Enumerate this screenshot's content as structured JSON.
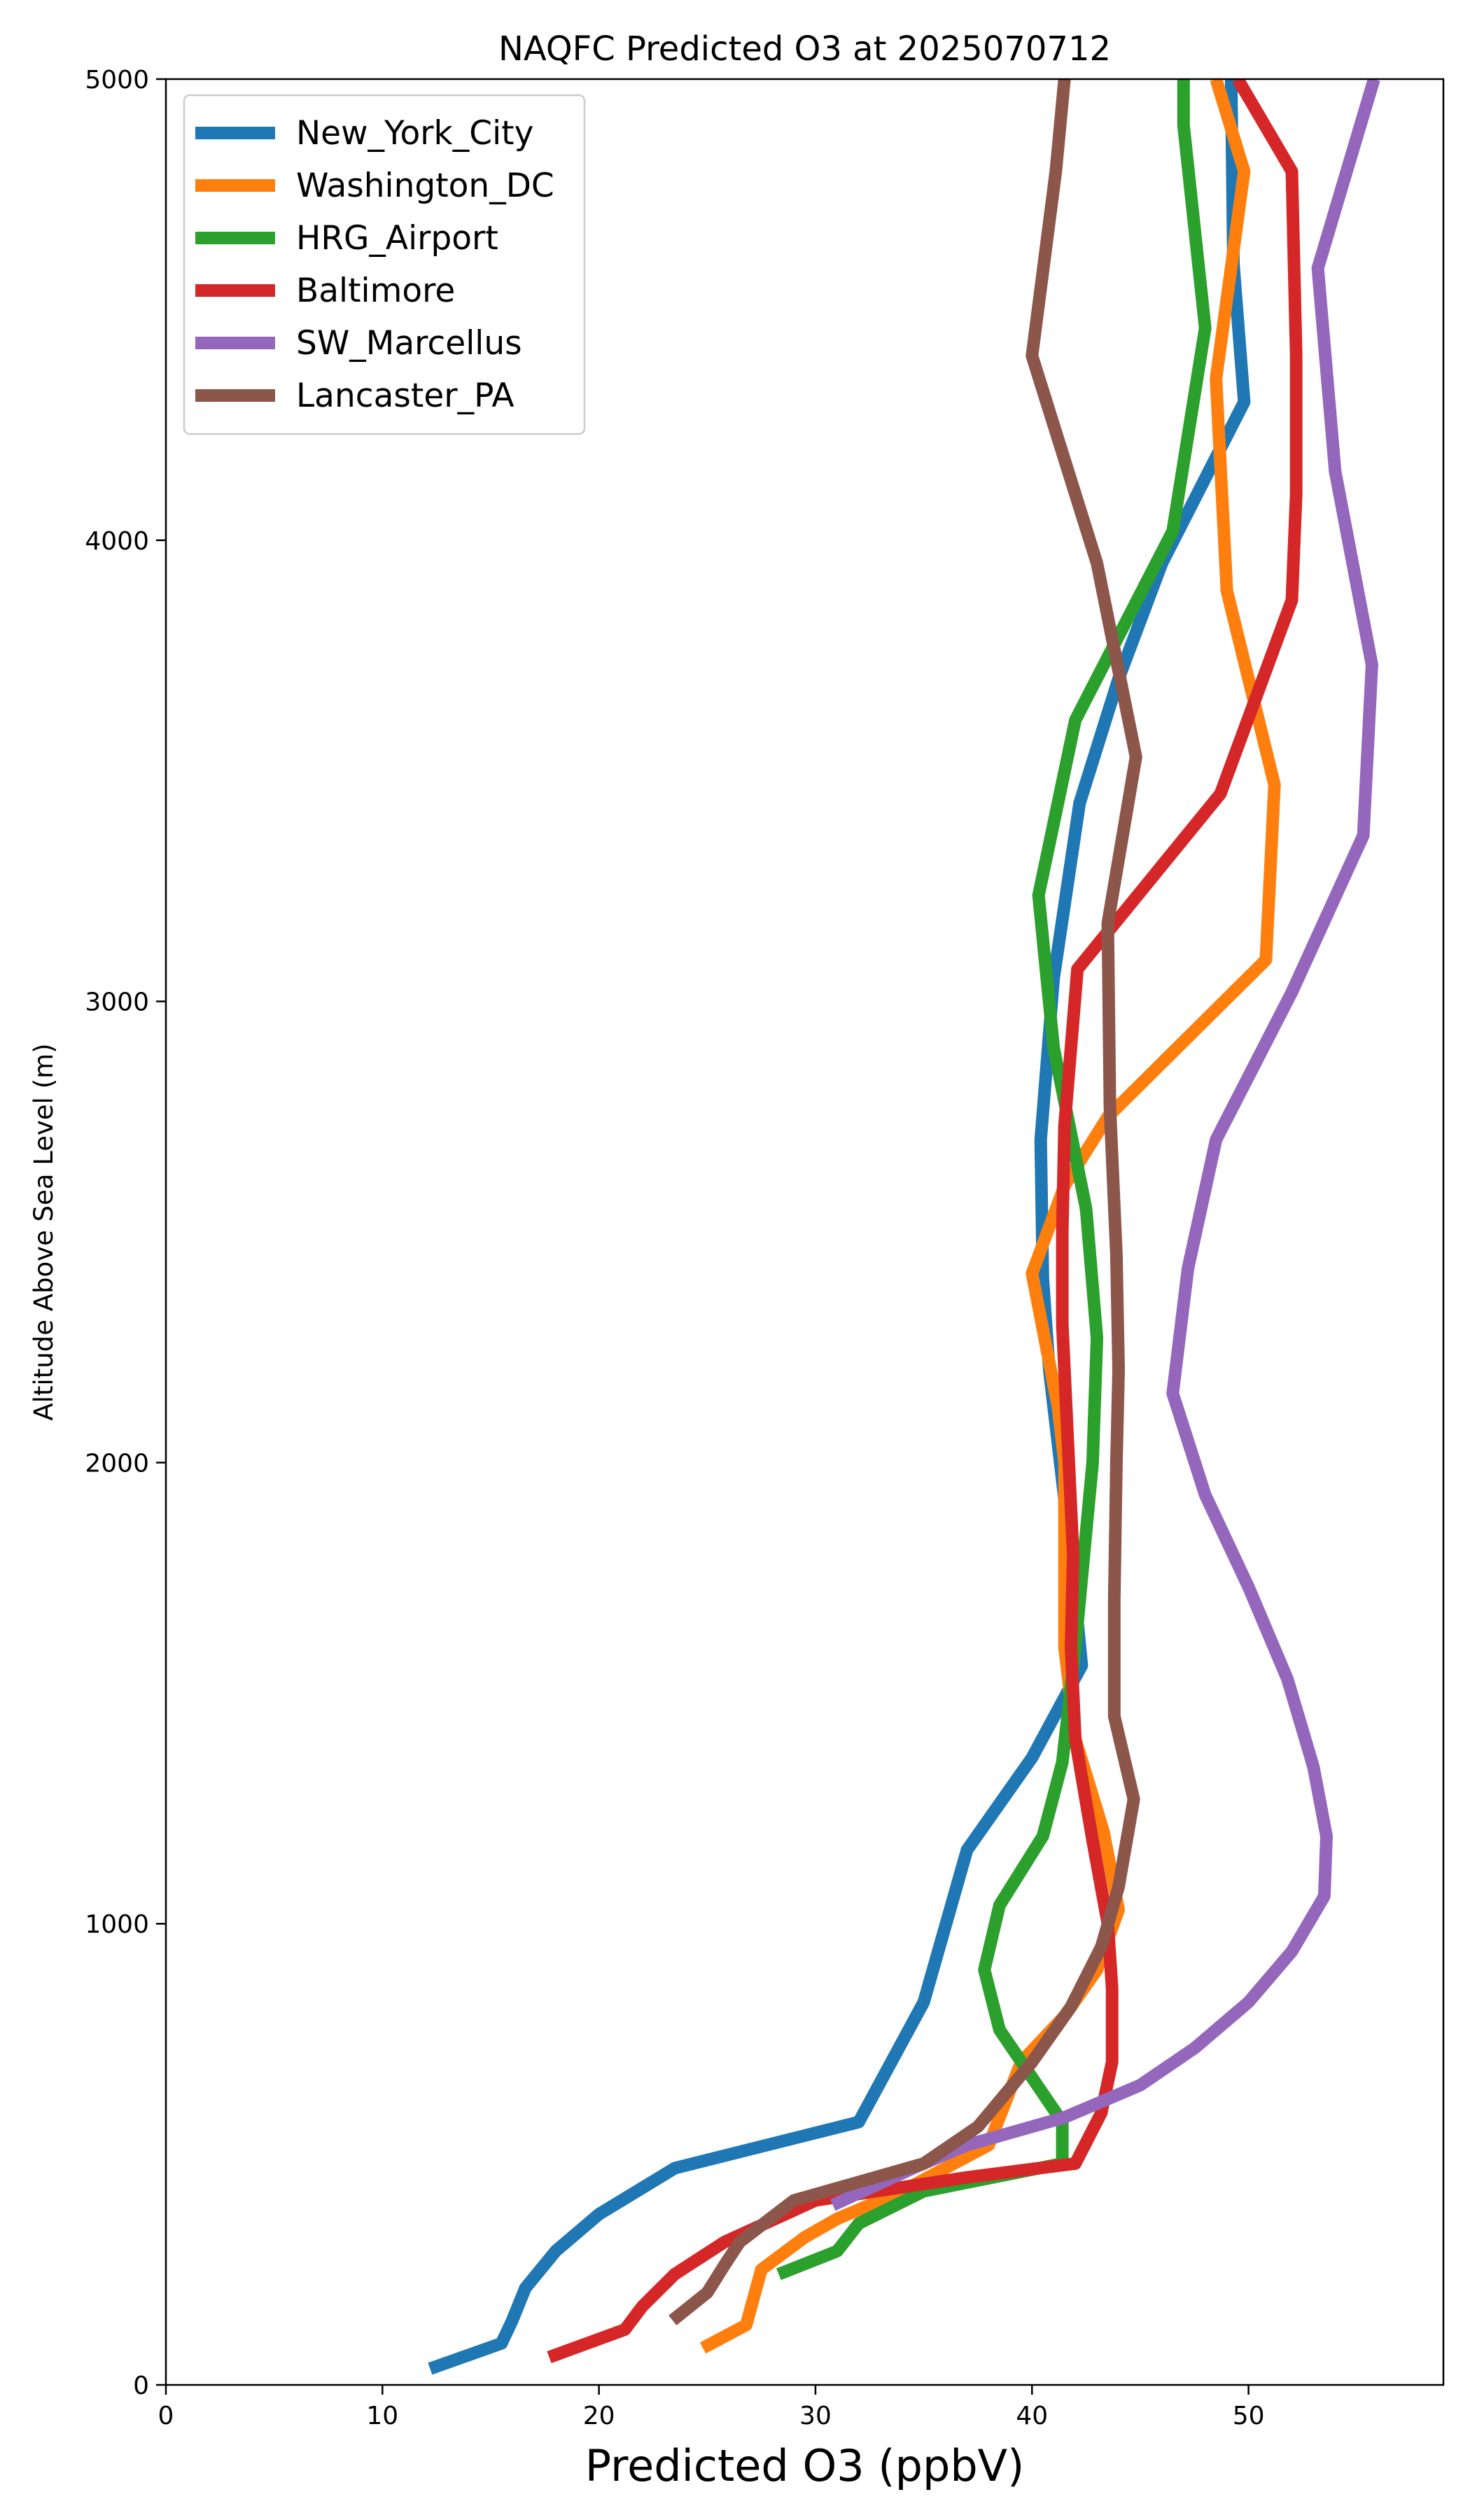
{
  "chart_data": {
    "type": "line",
    "title": "NAQFC Predicted O3 at 2025070712",
    "xlabel": "Predicted O3 (ppbV)",
    "ylabel": "Altitude Above Sea Level (m)",
    "xlim": [
      0,
      59
    ],
    "ylim": [
      0,
      5000
    ],
    "xticks": [
      0,
      10,
      20,
      30,
      40,
      50
    ],
    "yticks": [
      0,
      1000,
      2000,
      3000,
      4000,
      5000
    ],
    "grid": false,
    "legend_position": "upper-left",
    "series": [
      {
        "name": "New_York_City",
        "color": "#1f77b4",
        "points": [
          [
            12.2,
            35
          ],
          [
            15.5,
            90
          ],
          [
            16,
            140
          ],
          [
            16.6,
            210
          ],
          [
            18,
            290
          ],
          [
            20,
            370
          ],
          [
            23.5,
            470
          ],
          [
            32,
            570
          ],
          [
            35,
            830
          ],
          [
            37,
            1160
          ],
          [
            40,
            1360
          ],
          [
            42.3,
            1560
          ],
          [
            41.8,
            1800
          ],
          [
            41.3,
            2000
          ],
          [
            40.8,
            2200
          ],
          [
            40.5,
            2400
          ],
          [
            40.4,
            2700
          ],
          [
            41,
            3050
          ],
          [
            42.2,
            3430
          ],
          [
            44,
            3700
          ],
          [
            46,
            3950
          ],
          [
            49.8,
            4300
          ],
          [
            49.3,
            4600
          ],
          [
            49.2,
            5000
          ]
        ]
      },
      {
        "name": "Washington_DC",
        "color": "#ff7f0e",
        "points": [
          [
            24.8,
            80
          ],
          [
            26.8,
            130
          ],
          [
            27.5,
            250
          ],
          [
            29.5,
            320
          ],
          [
            31,
            360
          ],
          [
            34,
            420
          ],
          [
            38,
            520
          ],
          [
            39.5,
            700
          ],
          [
            41.5,
            800
          ],
          [
            43,
            900
          ],
          [
            44,
            1030
          ],
          [
            43.3,
            1200
          ],
          [
            42,
            1400
          ],
          [
            41.5,
            1600
          ],
          [
            41.5,
            1800
          ],
          [
            41.5,
            2000
          ],
          [
            41.2,
            2120
          ],
          [
            40,
            2410
          ],
          [
            41.5,
            2600
          ],
          [
            43.5,
            2750
          ],
          [
            50.8,
            3090
          ],
          [
            51.2,
            3470
          ],
          [
            49,
            3890
          ],
          [
            48.5,
            4350
          ],
          [
            49.8,
            4800
          ],
          [
            48.5,
            5000
          ]
        ]
      },
      {
        "name": "HRG_Airport",
        "color": "#2ca02c",
        "points": [
          [
            28.3,
            240
          ],
          [
            31,
            290
          ],
          [
            32,
            350
          ],
          [
            35,
            420
          ],
          [
            41.4,
            480
          ],
          [
            41.4,
            570
          ],
          [
            38.5,
            770
          ],
          [
            37.8,
            900
          ],
          [
            38.5,
            1040
          ],
          [
            40.5,
            1190
          ],
          [
            41.4,
            1350
          ],
          [
            42,
            1600
          ],
          [
            42.5,
            1850
          ],
          [
            42.8,
            2000
          ],
          [
            43,
            2270
          ],
          [
            42.5,
            2550
          ],
          [
            41,
            2900
          ],
          [
            40.3,
            3230
          ],
          [
            42,
            3610
          ],
          [
            46.5,
            4020
          ],
          [
            48,
            4460
          ],
          [
            47,
            4900
          ],
          [
            47,
            5000
          ]
        ]
      },
      {
        "name": "Baltimore",
        "color": "#d62728",
        "points": [
          [
            17.7,
            60
          ],
          [
            21.2,
            120
          ],
          [
            22,
            170
          ],
          [
            23.5,
            240
          ],
          [
            25.8,
            310
          ],
          [
            30,
            400
          ],
          [
            37,
            450
          ],
          [
            42,
            480
          ],
          [
            43.2,
            590
          ],
          [
            43.7,
            700
          ],
          [
            43.7,
            860
          ],
          [
            43.5,
            1000
          ],
          [
            42.8,
            1180
          ],
          [
            42,
            1400
          ],
          [
            41.8,
            1600
          ],
          [
            41.9,
            1800
          ],
          [
            41.7,
            2000
          ],
          [
            41.4,
            2300
          ],
          [
            41.4,
            2500
          ],
          [
            41.5,
            2730
          ],
          [
            42.1,
            3070
          ],
          [
            48.7,
            3450
          ],
          [
            52,
            3870
          ],
          [
            52.2,
            4100
          ],
          [
            52.2,
            4400
          ],
          [
            52,
            4800
          ],
          [
            49.5,
            5000
          ]
        ]
      },
      {
        "name": "SW_Marcellus",
        "color": "#9467bd",
        "points": [
          [
            30.8,
            390
          ],
          [
            34.5,
            470
          ],
          [
            37,
            520
          ],
          [
            41.5,
            580
          ],
          [
            45,
            650
          ],
          [
            47.5,
            730
          ],
          [
            50,
            830
          ],
          [
            52,
            940
          ],
          [
            53.5,
            1060
          ],
          [
            53.6,
            1190
          ],
          [
            53,
            1340
          ],
          [
            51.8,
            1530
          ],
          [
            50,
            1730
          ],
          [
            48,
            1930
          ],
          [
            46.5,
            2150
          ],
          [
            47.2,
            2420
          ],
          [
            48.5,
            2700
          ],
          [
            52,
            3020
          ],
          [
            55.3,
            3360
          ],
          [
            55.7,
            3730
          ],
          [
            54,
            4150
          ],
          [
            53.2,
            4590
          ],
          [
            55.8,
            5000
          ]
        ]
      },
      {
        "name": "Lancaster_PA",
        "color": "#8c564b",
        "points": [
          [
            23.4,
            140
          ],
          [
            25,
            200
          ],
          [
            25.8,
            260
          ],
          [
            26.5,
            310
          ],
          [
            29,
            400
          ],
          [
            35,
            480
          ],
          [
            37.5,
            560
          ],
          [
            40,
            700
          ],
          [
            41.8,
            820
          ],
          [
            43.2,
            950
          ],
          [
            44,
            1080
          ],
          [
            44.7,
            1270
          ],
          [
            43.8,
            1450
          ],
          [
            43.8,
            1700
          ],
          [
            43.9,
            2000
          ],
          [
            44,
            2200
          ],
          [
            43.9,
            2450
          ],
          [
            43.6,
            2770
          ],
          [
            43.5,
            3170
          ],
          [
            44.8,
            3530
          ],
          [
            43,
            3950
          ],
          [
            40,
            4400
          ],
          [
            41.1,
            4800
          ],
          [
            41.5,
            5000
          ]
        ]
      }
    ]
  }
}
